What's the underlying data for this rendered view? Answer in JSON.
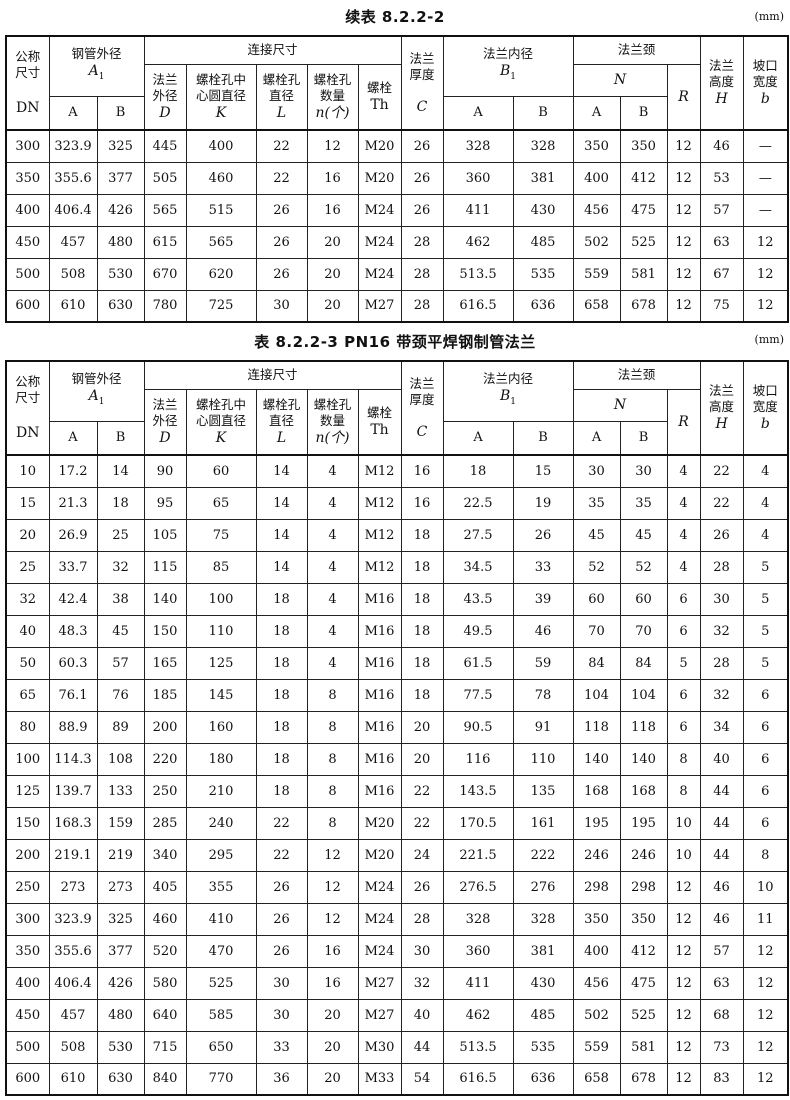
{
  "tables": [
    {
      "title": "续表 8.2.2-2",
      "unit": "(mm)",
      "rows": [
        [
          "300",
          "323.9",
          "325",
          "445",
          "400",
          "22",
          "12",
          "M20",
          "26",
          "328",
          "328",
          "350",
          "350",
          "12",
          "46",
          "—"
        ],
        [
          "350",
          "355.6",
          "377",
          "505",
          "460",
          "22",
          "16",
          "M20",
          "26",
          "360",
          "381",
          "400",
          "412",
          "12",
          "53",
          "—"
        ],
        [
          "400",
          "406.4",
          "426",
          "565",
          "515",
          "26",
          "16",
          "M24",
          "26",
          "411",
          "430",
          "456",
          "475",
          "12",
          "57",
          "—"
        ],
        [
          "450",
          "457",
          "480",
          "615",
          "565",
          "26",
          "20",
          "M24",
          "28",
          "462",
          "485",
          "502",
          "525",
          "12",
          "63",
          "12"
        ],
        [
          "500",
          "508",
          "530",
          "670",
          "620",
          "26",
          "20",
          "M24",
          "28",
          "513.5",
          "535",
          "559",
          "581",
          "12",
          "67",
          "12"
        ],
        [
          "600",
          "610",
          "630",
          "780",
          "725",
          "30",
          "20",
          "M27",
          "28",
          "616.5",
          "636",
          "658",
          "678",
          "12",
          "75",
          "12"
        ]
      ]
    },
    {
      "title": "表 8.2.2-3  PN16 带颈平焊钢制管法兰",
      "unit": "(mm)",
      "rows": [
        [
          "10",
          "17.2",
          "14",
          "90",
          "60",
          "14",
          "4",
          "M12",
          "16",
          "18",
          "15",
          "30",
          "30",
          "4",
          "22",
          "4"
        ],
        [
          "15",
          "21.3",
          "18",
          "95",
          "65",
          "14",
          "4",
          "M12",
          "16",
          "22.5",
          "19",
          "35",
          "35",
          "4",
          "22",
          "4"
        ],
        [
          "20",
          "26.9",
          "25",
          "105",
          "75",
          "14",
          "4",
          "M12",
          "18",
          "27.5",
          "26",
          "45",
          "45",
          "4",
          "26",
          "4"
        ],
        [
          "25",
          "33.7",
          "32",
          "115",
          "85",
          "14",
          "4",
          "M12",
          "18",
          "34.5",
          "33",
          "52",
          "52",
          "4",
          "28",
          "5"
        ],
        [
          "32",
          "42.4",
          "38",
          "140",
          "100",
          "18",
          "4",
          "M16",
          "18",
          "43.5",
          "39",
          "60",
          "60",
          "6",
          "30",
          "5"
        ],
        [
          "40",
          "48.3",
          "45",
          "150",
          "110",
          "18",
          "4",
          "M16",
          "18",
          "49.5",
          "46",
          "70",
          "70",
          "6",
          "32",
          "5"
        ],
        [
          "50",
          "60.3",
          "57",
          "165",
          "125",
          "18",
          "4",
          "M16",
          "18",
          "61.5",
          "59",
          "84",
          "84",
          "5",
          "28",
          "5"
        ],
        [
          "65",
          "76.1",
          "76",
          "185",
          "145",
          "18",
          "8",
          "M16",
          "18",
          "77.5",
          "78",
          "104",
          "104",
          "6",
          "32",
          "6"
        ],
        [
          "80",
          "88.9",
          "89",
          "200",
          "160",
          "18",
          "8",
          "M16",
          "20",
          "90.5",
          "91",
          "118",
          "118",
          "6",
          "34",
          "6"
        ],
        [
          "100",
          "114.3",
          "108",
          "220",
          "180",
          "18",
          "8",
          "M16",
          "20",
          "116",
          "110",
          "140",
          "140",
          "8",
          "40",
          "6"
        ],
        [
          "125",
          "139.7",
          "133",
          "250",
          "210",
          "18",
          "8",
          "M16",
          "22",
          "143.5",
          "135",
          "168",
          "168",
          "8",
          "44",
          "6"
        ],
        [
          "150",
          "168.3",
          "159",
          "285",
          "240",
          "22",
          "8",
          "M20",
          "22",
          "170.5",
          "161",
          "195",
          "195",
          "10",
          "44",
          "6"
        ],
        [
          "200",
          "219.1",
          "219",
          "340",
          "295",
          "22",
          "12",
          "M20",
          "24",
          "221.5",
          "222",
          "246",
          "246",
          "10",
          "44",
          "8"
        ],
        [
          "250",
          "273",
          "273",
          "405",
          "355",
          "26",
          "12",
          "M24",
          "26",
          "276.5",
          "276",
          "298",
          "298",
          "12",
          "46",
          "10"
        ],
        [
          "300",
          "323.9",
          "325",
          "460",
          "410",
          "26",
          "12",
          "M24",
          "28",
          "328",
          "328",
          "350",
          "350",
          "12",
          "46",
          "11"
        ],
        [
          "350",
          "355.6",
          "377",
          "520",
          "470",
          "26",
          "16",
          "M24",
          "30",
          "360",
          "381",
          "400",
          "412",
          "12",
          "57",
          "12"
        ],
        [
          "400",
          "406.4",
          "426",
          "580",
          "525",
          "30",
          "16",
          "M27",
          "32",
          "411",
          "430",
          "456",
          "475",
          "12",
          "63",
          "12"
        ],
        [
          "450",
          "457",
          "480",
          "640",
          "585",
          "30",
          "20",
          "M27",
          "40",
          "462",
          "485",
          "502",
          "525",
          "12",
          "68",
          "12"
        ],
        [
          "500",
          "508",
          "530",
          "715",
          "650",
          "33",
          "20",
          "M30",
          "44",
          "513.5",
          "535",
          "559",
          "581",
          "12",
          "73",
          "12"
        ],
        [
          "600",
          "610",
          "630",
          "840",
          "770",
          "36",
          "20",
          "M33",
          "54",
          "616.5",
          "636",
          "658",
          "678",
          "12",
          "83",
          "12"
        ]
      ]
    }
  ],
  "header": {
    "nominal": [
      "公称",
      "尺寸"
    ],
    "nominal_sym": "DN",
    "pipe_od": [
      "钢管外径"
    ],
    "pipe_od_sym": "A",
    "pipe_od_sub": "1",
    "connection": [
      "连接尺寸"
    ],
    "flange_od": [
      "法兰",
      "外径"
    ],
    "flange_od_sym": "D",
    "bolt_circle": [
      "螺栓孔中",
      "心圆直径"
    ],
    "bolt_circle_sym": "K",
    "bolt_hole": [
      "螺栓孔",
      "直径"
    ],
    "bolt_hole_sym": "L",
    "bolt_count": [
      "螺栓孔",
      "数量"
    ],
    "bolt_count_sym": "n(个)",
    "bolt": [
      "螺栓"
    ],
    "bolt_sym": "Th",
    "thickness": [
      "法兰",
      "厚度"
    ],
    "thickness_sym": "C",
    "flange_id": [
      "法兰内径"
    ],
    "flange_id_sym": "B",
    "flange_id_sub": "1",
    "neck": [
      "法兰颈"
    ],
    "neck_n_sym": "N",
    "neck_r_sym": "R",
    "height": [
      "法兰",
      "高度"
    ],
    "height_sym": "H",
    "bevel": [
      "坡口",
      "宽度"
    ],
    "bevel_sym": "b",
    "col_a": "A",
    "col_b": "B"
  }
}
